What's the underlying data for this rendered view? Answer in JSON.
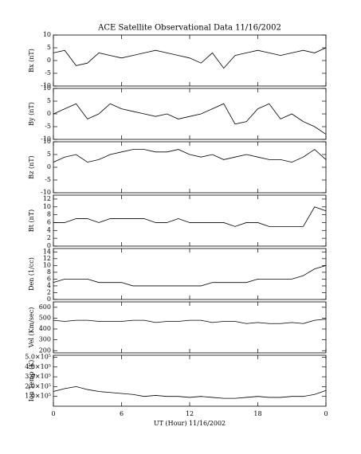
{
  "chart_data": [
    {
      "type": "line",
      "title": "ACE Satellite Observational Data   11/16/2002",
      "ylabel": "Bx (nT)",
      "x": [
        0,
        1,
        2,
        3,
        4,
        5,
        6,
        7,
        8,
        9,
        10,
        11,
        12,
        13,
        14,
        15,
        16,
        17,
        18,
        19,
        20,
        21,
        22,
        23,
        24
      ],
      "xlim": [
        0,
        24
      ],
      "xticks": [
        0,
        6,
        12,
        18,
        {
          "value": 24,
          "label": "0"
        }
      ],
      "ylim": [
        -10,
        10
      ],
      "yticks": [
        -10,
        -5,
        0,
        5,
        10
      ],
      "color": "#000000",
      "series": [
        {
          "values": [
            3,
            4,
            -2,
            -1,
            3,
            2,
            1,
            2,
            3,
            4,
            3,
            2,
            1,
            -1,
            3,
            -3,
            2,
            3,
            4,
            3,
            2,
            3,
            4,
            3,
            5
          ]
        }
      ]
    },
    {
      "type": "line",
      "ylabel": "By (nT)",
      "x": [
        0,
        1,
        2,
        3,
        4,
        5,
        6,
        7,
        8,
        9,
        10,
        11,
        12,
        13,
        14,
        15,
        16,
        17,
        18,
        19,
        20,
        21,
        22,
        23,
        24
      ],
      "xlim": [
        0,
        24
      ],
      "xticks": [
        0,
        6,
        12,
        18,
        {
          "value": 24,
          "label": "0"
        }
      ],
      "ylim": [
        -10,
        10
      ],
      "yticks": [
        -10,
        -5,
        0,
        5,
        10
      ],
      "color": "#000000",
      "series": [
        {
          "values": [
            0,
            2,
            4,
            -2,
            0,
            4,
            2,
            1,
            0,
            -1,
            0,
            -2,
            -1,
            0,
            2,
            4,
            -4,
            -3,
            2,
            4,
            -2,
            0,
            -3,
            -5,
            -8
          ]
        }
      ]
    },
    {
      "type": "line",
      "ylabel": "Bz (nT)",
      "x": [
        0,
        1,
        2,
        3,
        4,
        5,
        6,
        7,
        8,
        9,
        10,
        11,
        12,
        13,
        14,
        15,
        16,
        17,
        18,
        19,
        20,
        21,
        22,
        23,
        24
      ],
      "xlim": [
        0,
        24
      ],
      "xticks": [
        0,
        6,
        12,
        18,
        {
          "value": 24,
          "label": "0"
        }
      ],
      "ylim": [
        -10,
        10
      ],
      "yticks": [
        -10,
        -5,
        0,
        5,
        10
      ],
      "color": "#000000",
      "series": [
        {
          "values": [
            2,
            4,
            5,
            2,
            3,
            5,
            6,
            7,
            7,
            6,
            6,
            7,
            5,
            4,
            5,
            3,
            4,
            5,
            4,
            3,
            3,
            2,
            4,
            7,
            3
          ]
        }
      ]
    },
    {
      "type": "line",
      "ylabel": "Bt (nT)",
      "x": [
        0,
        1,
        2,
        3,
        4,
        5,
        6,
        7,
        8,
        9,
        10,
        11,
        12,
        13,
        14,
        15,
        16,
        17,
        18,
        19,
        20,
        21,
        22,
        23,
        24
      ],
      "xlim": [
        0,
        24
      ],
      "xticks": [
        0,
        6,
        12,
        18,
        {
          "value": 24,
          "label": "0"
        }
      ],
      "ylim": [
        0,
        13
      ],
      "yticks": [
        0,
        2,
        4,
        6,
        8,
        10,
        12
      ],
      "color": "#000000",
      "series": [
        {
          "values": [
            6,
            6,
            7,
            7,
            6,
            7,
            7,
            7,
            7,
            6,
            6,
            7,
            6,
            6,
            6,
            6,
            5,
            6,
            6,
            5,
            5,
            5,
            5,
            10,
            9
          ]
        }
      ]
    },
    {
      "type": "line",
      "ylabel": "Den (1/cc)",
      "x": [
        0,
        1,
        2,
        3,
        4,
        5,
        6,
        7,
        8,
        9,
        10,
        11,
        12,
        13,
        14,
        15,
        16,
        17,
        18,
        19,
        20,
        21,
        22,
        23,
        24
      ],
      "xlim": [
        0,
        24
      ],
      "xticks": [
        0,
        6,
        12,
        18,
        {
          "value": 24,
          "label": "0"
        }
      ],
      "ylim": [
        0,
        15
      ],
      "yticks": [
        0,
        2,
        4,
        6,
        8,
        10,
        12,
        14
      ],
      "color": "#000000",
      "series": [
        {
          "values": [
            5,
            6,
            6,
            6,
            5,
            5,
            5,
            4,
            4,
            4,
            4,
            4,
            4,
            4,
            5,
            5,
            5,
            5,
            6,
            6,
            6,
            6,
            7,
            9,
            10
          ]
        }
      ]
    },
    {
      "type": "line",
      "ylabel": "Vel (Km/sec)",
      "x": [
        0,
        1,
        2,
        3,
        4,
        5,
        6,
        7,
        8,
        9,
        10,
        11,
        12,
        13,
        14,
        15,
        16,
        17,
        18,
        19,
        20,
        21,
        22,
        23,
        24
      ],
      "xlim": [
        0,
        24
      ],
      "xticks": [
        0,
        6,
        12,
        18,
        {
          "value": 24,
          "label": "0"
        }
      ],
      "ylim": [
        180,
        650
      ],
      "yticks": [
        200,
        300,
        400,
        500,
        600
      ],
      "color": "#000000",
      "series": [
        {
          "values": [
            480,
            470,
            480,
            480,
            470,
            470,
            470,
            480,
            480,
            460,
            470,
            470,
            480,
            480,
            460,
            470,
            470,
            450,
            460,
            450,
            450,
            460,
            450,
            480,
            490
          ]
        }
      ]
    },
    {
      "type": "line",
      "ylabel": "Ion Temp (K)",
      "xlabel": "UT (Hour)   11/16/2002",
      "x": [
        0,
        1,
        2,
        3,
        4,
        5,
        6,
        7,
        8,
        9,
        10,
        11,
        12,
        13,
        14,
        15,
        16,
        17,
        18,
        19,
        20,
        21,
        22,
        23,
        24
      ],
      "xlim": [
        0,
        24
      ],
      "xticks": [
        0,
        6,
        12,
        18,
        {
          "value": 24,
          "label": "0"
        }
      ],
      "ylim": [
        0,
        520000
      ],
      "yticks": [
        {
          "value": 100000,
          "label": "1.0×10⁵"
        },
        {
          "value": 200000,
          "label": "2.0×10⁵"
        },
        {
          "value": 300000,
          "label": "3.0×10⁵"
        },
        {
          "value": 400000,
          "label": "4.0×10⁵"
        },
        {
          "value": 500000,
          "label": "5.0×10⁵"
        }
      ],
      "color": "#000000",
      "series": [
        {
          "values": [
            150000,
            180000,
            200000,
            170000,
            150000,
            140000,
            130000,
            120000,
            100000,
            110000,
            100000,
            100000,
            90000,
            100000,
            90000,
            80000,
            80000,
            90000,
            100000,
            90000,
            90000,
            100000,
            100000,
            120000,
            160000
          ]
        }
      ]
    }
  ]
}
